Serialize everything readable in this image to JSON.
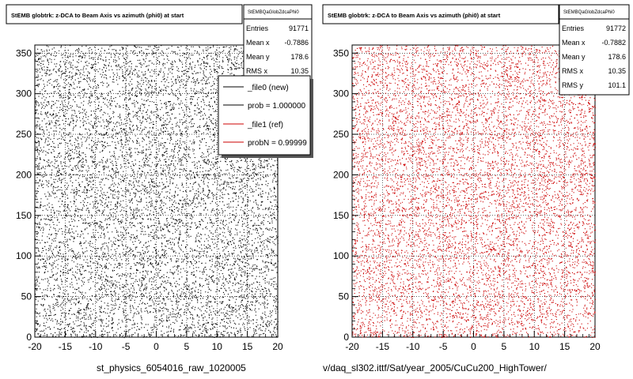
{
  "left": {
    "title": "StEMB globtrk: z-DCA to Beam Axis vs azimuth (phi0) at start",
    "stats": {
      "name": "StEMBQaGlobZdcaPhi0",
      "rows": [
        {
          "label": "Entries",
          "value": "91771"
        },
        {
          "label": "Mean x",
          "value": "-0.7886"
        },
        {
          "label": "Mean y",
          "value": "178.6"
        },
        {
          "label": "RMS x",
          "value": "10.35"
        }
      ]
    },
    "legend": {
      "entries": [
        {
          "label": "_file0 (new)",
          "color": "#000000"
        },
        {
          "label": "prob = 1.000000",
          "color": "#000000"
        },
        {
          "label": "_file1 (ref)",
          "color": "#cc0000"
        },
        {
          "label": "probN = 0.99999",
          "color": "#cc0000"
        }
      ]
    },
    "footer": "st_physics_6054016_raw_1020005"
  },
  "right": {
    "title": "StEMB globtrk: z-DCA to Beam Axis vs azimuth (phi0) at start",
    "stats": {
      "name": "StEMBQaGlobZdcaPhi0",
      "rows": [
        {
          "label": "Entries",
          "value": "91772"
        },
        {
          "label": "Mean x",
          "value": "-0.7882"
        },
        {
          "label": "Mean y",
          "value": "178.6"
        },
        {
          "label": "RMS x",
          "value": "10.35"
        },
        {
          "label": "RMS y",
          "value": "101.1"
        }
      ]
    },
    "footer": "v/daq_sl302.ittf/Sat/year_2005/CuCu200_HighTower/"
  },
  "chart_data": [
    {
      "type": "scatter",
      "title": "StEMB globtrk: z-DCA to Beam Axis vs azimuth (phi0) at start",
      "xlim": [
        -20,
        20
      ],
      "ylim": [
        0,
        360
      ],
      "xticks": [
        "-20",
        "-15",
        "-10",
        "-5",
        "0",
        "5",
        "10",
        "15",
        "20"
      ],
      "yticks": [
        "0",
        "50",
        "100",
        "150",
        "200",
        "250",
        "300",
        "350"
      ],
      "grid": true,
      "color": "#000000",
      "entries": 91771,
      "mean_x": -0.7886,
      "mean_y": 178.6,
      "rms_x": 10.35
    },
    {
      "type": "scatter",
      "title": "StEMB globtrk: z-DCA to Beam Axis vs azimuth (phi0) at start",
      "xlim": [
        -20,
        20
      ],
      "ylim": [
        0,
        360
      ],
      "xticks": [
        "-20",
        "-15",
        "-10",
        "-5",
        "0",
        "5",
        "10",
        "15",
        "20"
      ],
      "yticks": [
        "0",
        "50",
        "100",
        "150",
        "200",
        "250",
        "300",
        "350"
      ],
      "grid": true,
      "color": "#cc0000",
      "entries": 91772,
      "mean_x": -0.7882,
      "mean_y": 178.6,
      "rms_x": 10.35,
      "rms_y": 101.1
    }
  ]
}
